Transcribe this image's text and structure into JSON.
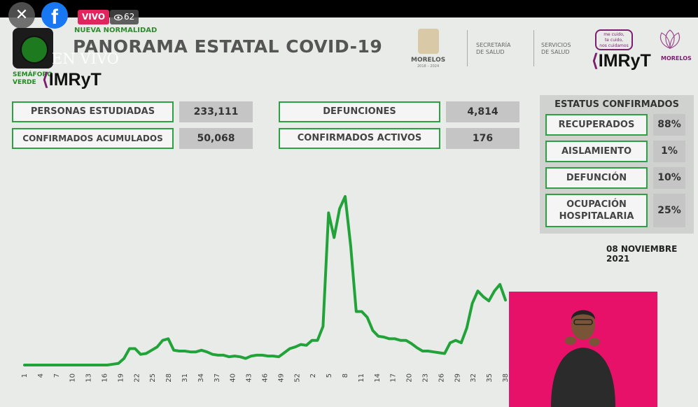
{
  "stream": {
    "close_icon": "close-icon",
    "live_badge": "VIVO",
    "viewer_count": "62",
    "colors": {
      "live": "#e0245e",
      "facebook": "#1877f2"
    }
  },
  "header": {
    "subtitle": "NUEVA NORMALIDAD",
    "title": "PANORAMA ESTATAL COVID-19",
    "overlay_text": "EN VIVO",
    "semaforo_text": [
      "SEMÁFORO",
      "VERDE"
    ],
    "broadcaster": "IMRyT",
    "morelos": "MORELOS",
    "morelos_years": "2018 – 2024",
    "secretaria": [
      "SECRETARÍA",
      "DE SALUD"
    ],
    "servicios": [
      "SERVICIOS",
      "DE SALUD"
    ],
    "slogan": [
      "me cuido,",
      "te cuido,",
      "nos cuidamos"
    ],
    "morelos_small": "MORELOS"
  },
  "stats": [
    {
      "label": "PERSONAS ESTUDIADAS",
      "value": "233,111"
    },
    {
      "label": "CONFIRMADOS ACUMULADOS",
      "value": "50,068"
    },
    {
      "label": "DEFUNCIONES",
      "value": "4,814"
    },
    {
      "label": "CONFIRMADOS ACTIVOS",
      "value": "176"
    }
  ],
  "status": {
    "title": "ESTATUS CONFIRMADOS",
    "items": [
      {
        "label": "RECUPERADOS",
        "value": "88%"
      },
      {
        "label": "AISLAMIENTO",
        "value": "1%"
      },
      {
        "label": "DEFUNCIÓN",
        "value": "10%"
      },
      {
        "label": "OCUPACIÓN HOSPITALARIA",
        "value": "25%"
      }
    ]
  },
  "date": "08 NOVIEMBRE 2021",
  "chart_data": {
    "type": "line",
    "title": "",
    "xlabel": "",
    "ylabel": "",
    "color": "#22a33a",
    "tick_labels": [
      "1",
      "4",
      "7",
      "10",
      "13",
      "16",
      "19",
      "22",
      "25",
      "28",
      "31",
      "34",
      "37",
      "40",
      "43",
      "46",
      "49",
      "52",
      "2",
      "5",
      "8",
      "11",
      "14",
      "17",
      "20",
      "23",
      "26",
      "29",
      "32",
      "35",
      "38"
    ],
    "values": [
      0,
      0,
      0,
      0,
      0,
      0,
      0,
      0,
      0,
      0,
      0,
      0,
      0,
      0,
      0,
      0,
      1,
      2,
      8,
      20,
      20,
      13,
      14,
      18,
      22,
      30,
      32,
      18,
      17,
      17,
      16,
      16,
      18,
      16,
      13,
      12,
      12,
      10,
      11,
      10,
      8,
      11,
      12,
      12,
      11,
      11,
      10,
      15,
      20,
      22,
      25,
      24,
      30,
      30,
      47,
      185,
      155,
      190,
      205,
      145,
      65,
      65,
      58,
      42,
      35,
      34,
      32,
      32,
      30,
      30,
      26,
      21,
      17,
      17,
      16,
      15,
      14,
      27,
      30,
      27,
      45,
      75,
      90,
      83,
      78,
      90,
      98,
      79
    ]
  },
  "pip": {
    "description_color": "#e8116a"
  }
}
